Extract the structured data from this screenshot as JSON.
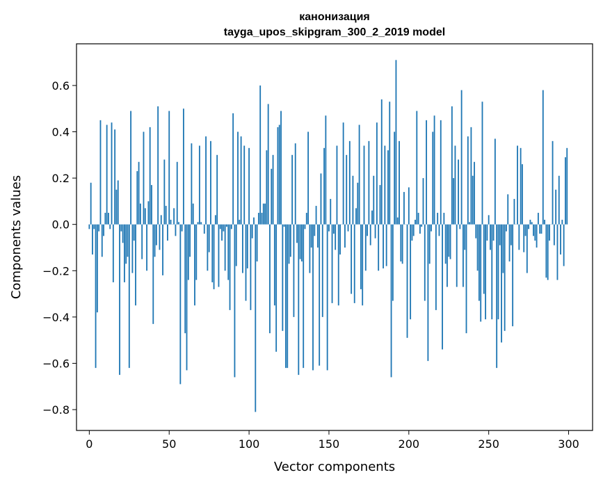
{
  "chart_data": {
    "type": "bar",
    "title_line1": "канонизация",
    "title_line2": "tayga_upos_skipgram_300_2_2019 model",
    "xlabel": "Vector components",
    "ylabel": "Components values",
    "xlim": [
      -8,
      315
    ],
    "ylim": [
      -0.89,
      0.78
    ],
    "x_ticks": [
      0,
      50,
      100,
      150,
      200,
      250,
      300
    ],
    "x_tick_labels": [
      "0",
      "50",
      "100",
      "150",
      "200",
      "250",
      "300"
    ],
    "y_ticks": [
      -0.8,
      -0.6,
      -0.4,
      -0.2,
      0.0,
      0.2,
      0.4,
      0.6
    ],
    "y_tick_labels": [
      "−0.8",
      "−0.6",
      "−0.4",
      "−0.2",
      "0.0",
      "0.2",
      "0.4",
      "0.6"
    ],
    "bar_color": "#1f77b4",
    "values": [
      -0.02,
      0.18,
      -0.13,
      -0.02,
      -0.62,
      -0.38,
      -0.03,
      0.45,
      -0.14,
      -0.05,
      0.05,
      0.43,
      0.05,
      -0.02,
      0.44,
      -0.25,
      0.41,
      0.15,
      0.19,
      -0.65,
      -0.03,
      -0.08,
      -0.25,
      -0.17,
      -0.14,
      -0.62,
      0.49,
      -0.21,
      -0.07,
      -0.35,
      0.23,
      0.27,
      0.09,
      -0.15,
      0.4,
      0.07,
      -0.2,
      0.1,
      0.42,
      0.17,
      -0.43,
      -0.14,
      -0.09,
      0.51,
      -0.11,
      0.04,
      -0.22,
      0.28,
      0.08,
      -0.07,
      0.49,
      0.02,
      0.0,
      0.07,
      -0.05,
      0.27,
      0.01,
      -0.69,
      -0.03,
      0.5,
      -0.47,
      -0.63,
      -0.24,
      -0.14,
      0.35,
      0.09,
      -0.35,
      -0.24,
      0.01,
      0.34,
      0.01,
      0.0,
      -0.04,
      0.38,
      -0.2,
      -0.12,
      0.36,
      -0.25,
      -0.28,
      0.04,
      0.3,
      -0.27,
      -0.02,
      -0.07,
      -0.03,
      -0.2,
      -0.01,
      -0.24,
      -0.37,
      -0.02,
      0.48,
      -0.66,
      -0.18,
      0.4,
      0.02,
      0.38,
      -0.21,
      0.34,
      -0.33,
      -0.19,
      0.33,
      -0.37,
      -0.06,
      0.03,
      -0.81,
      -0.16,
      0.05,
      0.6,
      0.05,
      0.09,
      0.09,
      0.32,
      0.52,
      -0.47,
      0.24,
      0.3,
      -0.35,
      -0.55,
      0.42,
      0.43,
      0.49,
      -0.46,
      -0.01,
      -0.62,
      -0.62,
      -0.17,
      -0.14,
      0.3,
      -0.4,
      0.35,
      -0.08,
      -0.65,
      -0.15,
      -0.16,
      -0.62,
      -0.02,
      0.05,
      0.4,
      -0.21,
      -0.1,
      -0.63,
      -0.05,
      0.08,
      -0.1,
      -0.61,
      0.22,
      -0.4,
      0.33,
      0.47,
      -0.63,
      -0.03,
      0.11,
      -0.34,
      -0.04,
      -0.11,
      0.34,
      -0.35,
      -0.13,
      0.0,
      0.44,
      -0.1,
      0.3,
      -0.03,
      0.36,
      -0.3,
      0.21,
      -0.34,
      0.07,
      0.18,
      0.43,
      -0.28,
      -0.35,
      0.34,
      -0.2,
      -0.05,
      0.36,
      -0.09,
      0.06,
      0.21,
      -0.06,
      0.44,
      -0.2,
      0.17,
      0.54,
      -0.19,
      0.34,
      -0.18,
      0.32,
      0.53,
      -0.66,
      -0.33,
      0.4,
      0.71,
      0.03,
      0.36,
      -0.16,
      -0.17,
      0.14,
      0.0,
      -0.49,
      0.16,
      -0.41,
      -0.07,
      -0.05,
      0.02,
      0.49,
      0.05,
      -0.04,
      -0.01,
      0.2,
      -0.33,
      0.45,
      -0.59,
      -0.17,
      -0.03,
      0.4,
      0.47,
      -0.37,
      0.05,
      -0.05,
      0.45,
      -0.54,
      0.05,
      -0.17,
      -0.27,
      -0.14,
      -0.15,
      0.51,
      0.2,
      0.34,
      -0.27,
      0.28,
      -0.02,
      0.58,
      -0.27,
      -0.11,
      -0.47,
      0.38,
      0.01,
      0.42,
      0.21,
      0.27,
      -0.06,
      -0.2,
      -0.33,
      -0.42,
      0.53,
      -0.3,
      -0.41,
      -0.07,
      0.04,
      -0.11,
      -0.41,
      -0.07,
      0.37,
      -0.62,
      -0.41,
      -0.09,
      -0.51,
      -0.21,
      -0.46,
      -0.03,
      0.13,
      -0.16,
      -0.09,
      -0.44,
      0.11,
      0.0,
      0.34,
      -0.11,
      0.33,
      0.26,
      -0.12,
      -0.05,
      -0.21,
      -0.02,
      0.02,
      0.01,
      -0.05,
      -0.07,
      -0.1,
      0.05,
      -0.04,
      -0.04,
      0.58,
      0.02,
      -0.23,
      -0.24,
      -0.07,
      0.0,
      0.36,
      -0.09,
      0.15,
      -0.24,
      0.21,
      -0.13,
      0.02,
      -0.18,
      0.29,
      0.33
    ]
  }
}
